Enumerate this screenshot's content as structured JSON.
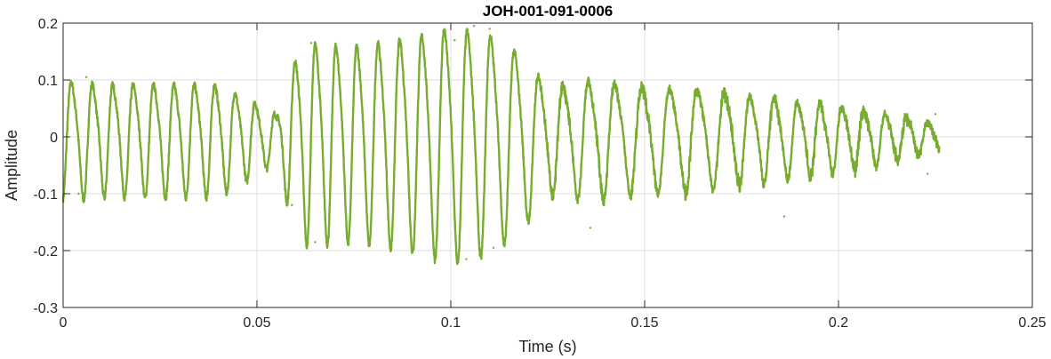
{
  "chart_data": {
    "type": "line",
    "title": "JOH-001-091-0006",
    "xlabel": "Time (s)",
    "ylabel": "Amplitude",
    "xlim": [
      0,
      0.25
    ],
    "ylim": [
      -0.3,
      0.2
    ],
    "x_ticks": [
      0,
      0.05,
      0.1,
      0.15,
      0.2,
      0.25
    ],
    "x_tick_labels": [
      "0",
      "0.05",
      "0.1",
      "0.15",
      "0.2",
      "0.25"
    ],
    "y_ticks": [
      -0.3,
      -0.2,
      -0.1,
      0,
      0.1,
      0.2
    ],
    "y_tick_labels": [
      "-0.3",
      "-0.2",
      "-0.1",
      "0",
      "0.1",
      "0.2"
    ],
    "grid": true,
    "series": [
      {
        "color": "#77AC30",
        "sample_rate_hz": 4000,
        "segments": [
          {
            "t": 0.0,
            "a": 0.1,
            "f": 180
          },
          {
            "t": 0.01,
            "a": 0.095,
            "f": 190
          },
          {
            "t": 0.04,
            "a": 0.095,
            "f": 190
          },
          {
            "t": 0.05,
            "a": 0.06,
            "f": 195
          },
          {
            "t": 0.055,
            "a": 0.04,
            "f": 195
          },
          {
            "t": 0.058,
            "a": 0.11,
            "f": 195
          },
          {
            "t": 0.062,
            "a": 0.17,
            "f": 190
          },
          {
            "t": 0.075,
            "a": 0.165,
            "f": 185
          },
          {
            "t": 0.09,
            "a": 0.18,
            "f": 175
          },
          {
            "t": 0.1,
            "a": 0.2,
            "f": 170
          },
          {
            "t": 0.11,
            "a": 0.185,
            "f": 165
          },
          {
            "t": 0.118,
            "a": 0.15,
            "f": 160
          },
          {
            "t": 0.125,
            "a": 0.09,
            "f": 160
          },
          {
            "t": 0.135,
            "a": 0.1,
            "f": 150
          },
          {
            "t": 0.15,
            "a": 0.09,
            "f": 140
          },
          {
            "t": 0.165,
            "a": 0.085,
            "f": 140
          },
          {
            "t": 0.18,
            "a": 0.07,
            "f": 160
          },
          {
            "t": 0.195,
            "a": 0.06,
            "f": 175
          },
          {
            "t": 0.21,
            "a": 0.045,
            "f": 180
          },
          {
            "t": 0.22,
            "a": 0.03,
            "f": 185
          },
          {
            "t": 0.226,
            "a": 0.02,
            "f": 185
          }
        ],
        "peaks": [
          {
            "x": 0.002,
            "y": 0.095
          },
          {
            "x": 0.004,
            "y": -0.1
          },
          {
            "x": 0.006,
            "y": 0.105
          },
          {
            "x": 0.059,
            "y": -0.12
          },
          {
            "x": 0.064,
            "y": 0.165
          },
          {
            "x": 0.065,
            "y": -0.185
          },
          {
            "x": 0.101,
            "y": 0.17
          },
          {
            "x": 0.104,
            "y": -0.215
          },
          {
            "x": 0.106,
            "y": 0.195
          },
          {
            "x": 0.11,
            "y": 0.19
          },
          {
            "x": 0.111,
            "y": -0.195
          },
          {
            "x": 0.136,
            "y": -0.16
          },
          {
            "x": 0.186,
            "y": -0.14
          },
          {
            "x": 0.223,
            "y": -0.065
          },
          {
            "x": 0.225,
            "y": 0.04
          }
        ],
        "end_x": 0.226
      }
    ]
  }
}
